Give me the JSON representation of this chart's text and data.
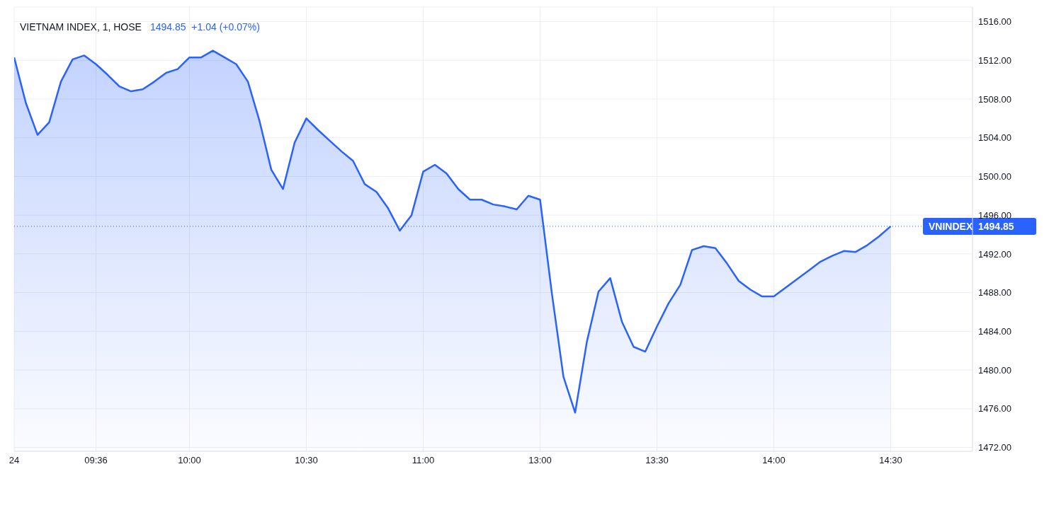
{
  "chart_data": {
    "type": "area",
    "title": "VIETNAM INDEX, 1, HOSE",
    "subtitle": "1494.85  +1.04 (+0.07%)",
    "categories": [
      "24",
      null,
      null,
      null,
      null,
      null,
      null,
      "09:36",
      null,
      null,
      null,
      null,
      null,
      null,
      null,
      "10:00",
      null,
      null,
      null,
      null,
      null,
      null,
      null,
      null,
      null,
      "10:30",
      null,
      null,
      null,
      null,
      null,
      null,
      null,
      null,
      null,
      "11:00",
      null,
      null,
      null,
      null,
      null,
      null,
      null,
      null,
      null,
      "13:00",
      null,
      null,
      null,
      null,
      null,
      null,
      null,
      null,
      null,
      "13:30",
      null,
      null,
      null,
      null,
      null,
      null,
      null,
      null,
      null,
      "14:00",
      null,
      null,
      null,
      null,
      null,
      null,
      null,
      null,
      null,
      "14:30"
    ],
    "series": [
      {
        "color": "#2962ff",
        "values": [
          1512.3,
          1507.6,
          1504.3,
          1505.6,
          1509.8,
          1512.1,
          1512.5,
          1511.6,
          1510.5,
          1509.3,
          1508.8,
          1509.0,
          1509.8,
          1510.7,
          1511.1,
          1512.3,
          1512.3,
          1513.0,
          1512.3,
          1511.6,
          1509.8,
          1505.7,
          1500.7,
          1498.7,
          1503.5,
          1506.0,
          1504.8,
          1503.7,
          1502.6,
          1501.6,
          1499.2,
          1498.4,
          1496.7,
          1494.4,
          1496.0,
          1500.5,
          1501.2,
          1500.3,
          1498.7,
          1497.6,
          1497.6,
          1497.1,
          1496.9,
          1496.6,
          1498.0,
          1497.6,
          1488.0,
          1479.3,
          1475.6,
          1482.9,
          1488.1,
          1489.5,
          1485.0,
          1482.4,
          1481.9,
          1484.5,
          1486.9,
          1488.8,
          1492.4,
          1492.8,
          1492.6,
          1491.0,
          1489.2,
          1488.3,
          1487.6,
          1487.6,
          1488.5,
          1489.4,
          1490.3,
          1491.2,
          1491.8,
          1492.3,
          1492.2,
          1492.9,
          1493.8,
          1494.85
        ]
      }
    ],
    "ylim": [
      1471.6,
      1517.5
    ],
    "yticks": [
      {
        "value": 1472,
        "label": "1472.00"
      },
      {
        "value": 1476,
        "label": "1476.00"
      },
      {
        "value": 1480,
        "label": "1480.00"
      },
      {
        "value": 1484,
        "label": "1484.00"
      },
      {
        "value": 1488,
        "label": "1488.00"
      },
      {
        "value": 1492,
        "label": "1492.00"
      },
      {
        "value": 1496,
        "label": "1496.00"
      },
      {
        "value": 1500,
        "label": "1500.00"
      },
      {
        "value": 1504,
        "label": "1504.00"
      },
      {
        "value": 1508,
        "label": "1508.00"
      },
      {
        "value": 1512,
        "label": "1512.00"
      },
      {
        "value": 1516,
        "label": "1516.00"
      }
    ],
    "ref_lines": [
      {
        "axis": "y",
        "value": 1494.85,
        "label": "VNINDEX  1494.85",
        "color": "#2962ff",
        "line_style": "dotted"
      }
    ],
    "grid": true,
    "marker": "none",
    "line_style": "solid"
  }
}
